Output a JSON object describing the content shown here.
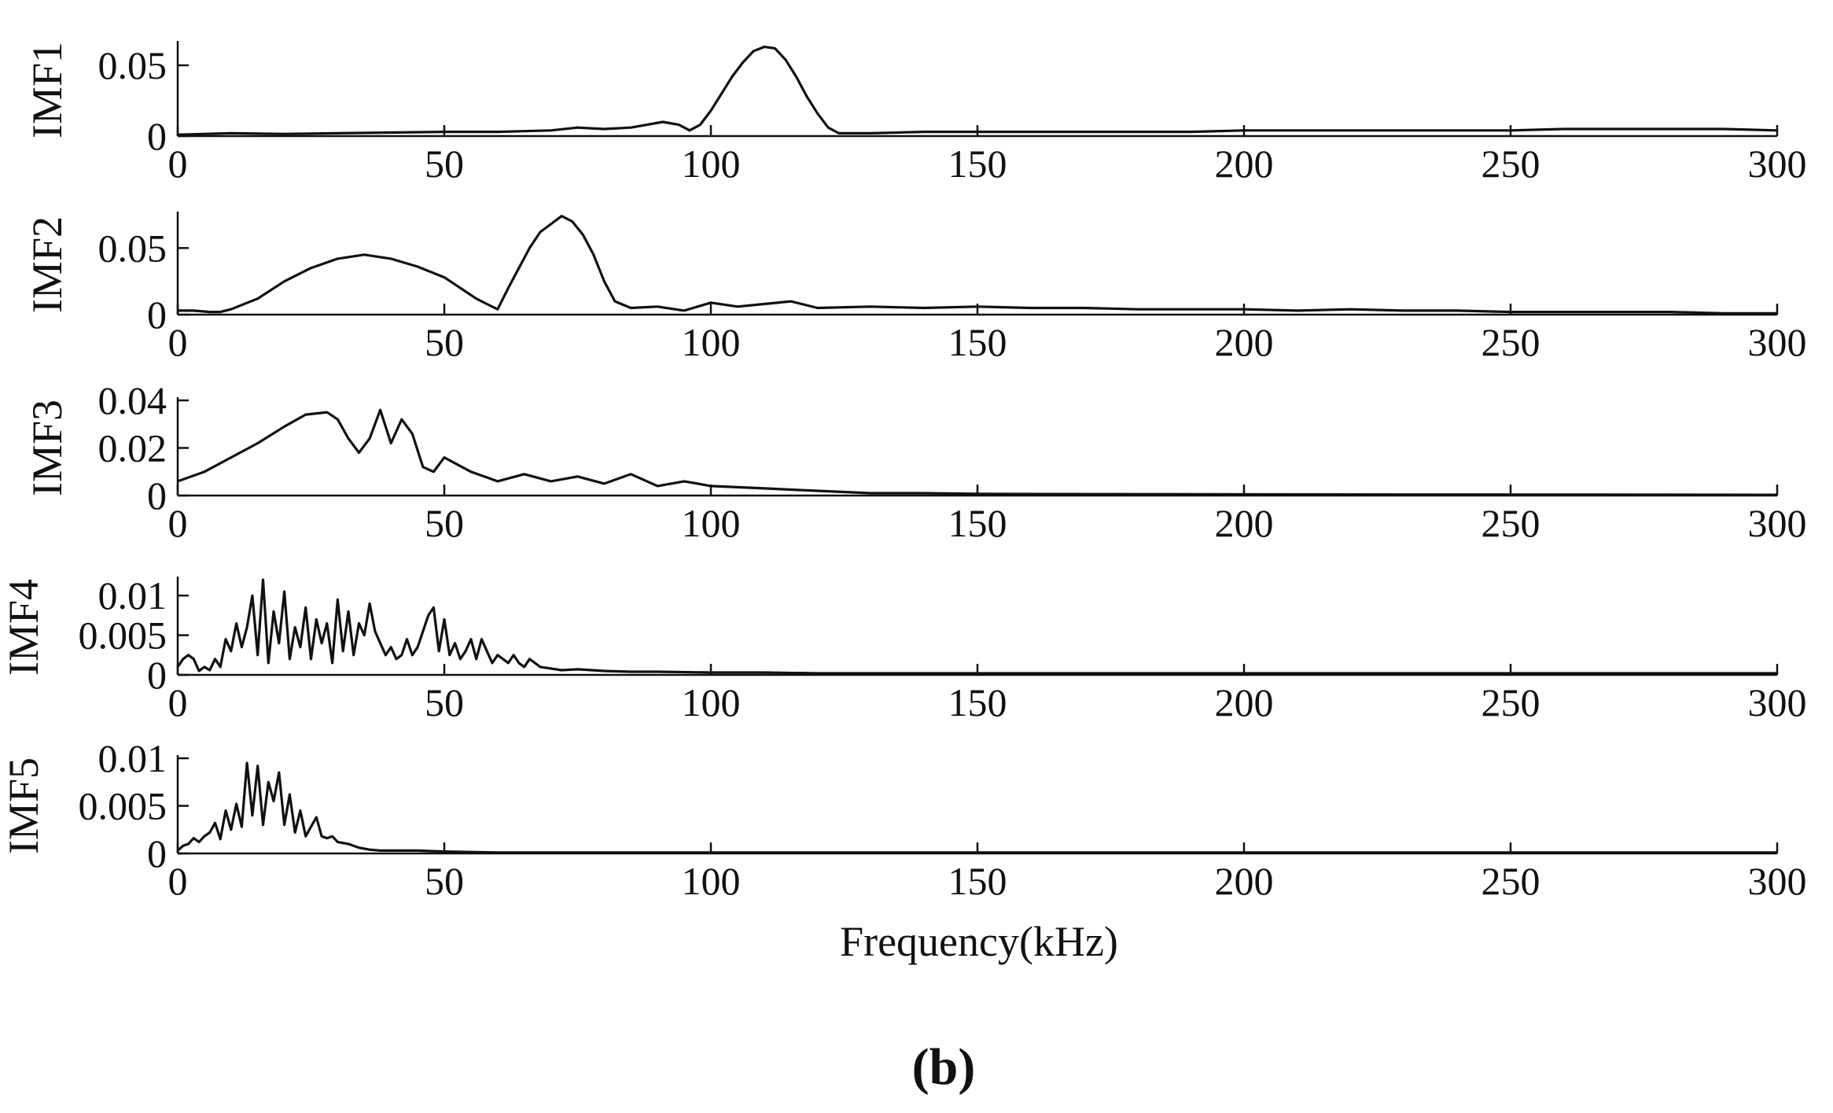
{
  "chart_data": [
    {
      "type": "line",
      "ylabel": "IMF1",
      "xlabel": "",
      "xlim": [
        0,
        300
      ],
      "ylim": [
        0,
        0.065
      ],
      "xticks": [
        "0",
        "50",
        "100",
        "150",
        "200",
        "250",
        "300"
      ],
      "yticks": [
        "0",
        "0.05"
      ],
      "line_color": "#111111",
      "series": [
        {
          "x": [
            0,
            10,
            20,
            30,
            40,
            50,
            60,
            70,
            75,
            80,
            85,
            88,
            91,
            94,
            96,
            98,
            100,
            102,
            104,
            106,
            108,
            110,
            112,
            114,
            116,
            118,
            120,
            122,
            124,
            130,
            140,
            150,
            160,
            170,
            180,
            190,
            200,
            210,
            220,
            230,
            240,
            250,
            260,
            270,
            280,
            290,
            300
          ],
          "values": [
            0.001,
            0.002,
            0.0015,
            0.002,
            0.0025,
            0.003,
            0.003,
            0.004,
            0.006,
            0.005,
            0.006,
            0.008,
            0.01,
            0.008,
            0.004,
            0.008,
            0.018,
            0.03,
            0.042,
            0.052,
            0.06,
            0.063,
            0.062,
            0.054,
            0.042,
            0.028,
            0.016,
            0.006,
            0.002,
            0.002,
            0.003,
            0.003,
            0.003,
            0.003,
            0.003,
            0.003,
            0.004,
            0.004,
            0.004,
            0.004,
            0.004,
            0.004,
            0.005,
            0.005,
            0.005,
            0.005,
            0.004
          ]
        }
      ]
    },
    {
      "type": "line",
      "ylabel": "IMF2",
      "xlabel": "",
      "xlim": [
        0,
        300
      ],
      "ylim": [
        0,
        0.075
      ],
      "xticks": [
        "0",
        "50",
        "100",
        "150",
        "200",
        "250",
        "300"
      ],
      "yticks": [
        "0",
        "0.05"
      ],
      "line_color": "#111111",
      "series": [
        {
          "x": [
            0,
            3,
            6,
            8,
            10,
            15,
            20,
            25,
            30,
            35,
            40,
            45,
            50,
            53,
            56,
            58,
            60,
            62,
            64,
            66,
            68,
            70,
            72,
            74,
            76,
            78,
            80,
            82,
            85,
            90,
            95,
            100,
            105,
            110,
            115,
            120,
            130,
            140,
            150,
            160,
            170,
            180,
            190,
            200,
            210,
            220,
            230,
            240,
            250,
            260,
            270,
            280,
            290,
            300
          ],
          "values": [
            0.003,
            0.003,
            0.002,
            0.002,
            0.004,
            0.012,
            0.025,
            0.035,
            0.042,
            0.045,
            0.042,
            0.036,
            0.028,
            0.02,
            0.012,
            0.008,
            0.004,
            0.02,
            0.035,
            0.05,
            0.062,
            0.068,
            0.074,
            0.07,
            0.06,
            0.045,
            0.025,
            0.01,
            0.005,
            0.006,
            0.003,
            0.009,
            0.006,
            0.008,
            0.01,
            0.005,
            0.006,
            0.005,
            0.006,
            0.005,
            0.005,
            0.004,
            0.004,
            0.004,
            0.003,
            0.004,
            0.003,
            0.003,
            0.002,
            0.002,
            0.002,
            0.002,
            0.001,
            0.001
          ]
        }
      ]
    },
    {
      "type": "line",
      "ylabel": "IMF3",
      "xlabel": "",
      "xlim": [
        0,
        300
      ],
      "ylim": [
        0,
        0.04
      ],
      "xticks": [
        "0",
        "50",
        "100",
        "150",
        "200",
        "250",
        "300"
      ],
      "yticks": [
        "0",
        "0.02",
        "0.04"
      ],
      "line_color": "#111111",
      "series": [
        {
          "x": [
            0,
            5,
            10,
            15,
            20,
            24,
            28,
            30,
            32,
            34,
            36,
            38,
            40,
            42,
            44,
            46,
            48,
            50,
            55,
            60,
            65,
            70,
            75,
            80,
            85,
            90,
            95,
            100,
            110,
            120,
            130,
            140,
            150,
            175,
            200,
            250,
            300
          ],
          "values": [
            0.006,
            0.01,
            0.016,
            0.022,
            0.029,
            0.034,
            0.035,
            0.032,
            0.024,
            0.018,
            0.024,
            0.036,
            0.022,
            0.032,
            0.026,
            0.012,
            0.01,
            0.016,
            0.01,
            0.006,
            0.009,
            0.006,
            0.008,
            0.005,
            0.009,
            0.004,
            0.006,
            0.004,
            0.003,
            0.002,
            0.001,
            0.001,
            0.0007,
            0.0006,
            0.0005,
            0.0004,
            0.0003
          ]
        }
      ]
    },
    {
      "type": "line",
      "ylabel": "IMF4",
      "xlabel": "",
      "xlim": [
        0,
        300
      ],
      "ylim": [
        0,
        0.012
      ],
      "xticks": [
        "0",
        "50",
        "100",
        "150",
        "200",
        "250",
        "300"
      ],
      "yticks": [
        "0",
        "0.005",
        "0.01"
      ],
      "line_color": "#111111",
      "series": [
        {
          "x": [
            0,
            1,
            2,
            3,
            4,
            5,
            6,
            7,
            8,
            9,
            10,
            11,
            12,
            13,
            14,
            15,
            16,
            17,
            18,
            19,
            20,
            21,
            22,
            23,
            24,
            25,
            26,
            27,
            28,
            29,
            30,
            31,
            32,
            33,
            34,
            35,
            36,
            37,
            38,
            39,
            40,
            41,
            42,
            43,
            44,
            45,
            46,
            47,
            48,
            49,
            50,
            51,
            52,
            53,
            54,
            55,
            56,
            57,
            58,
            59,
            60,
            61,
            62,
            63,
            64,
            65,
            66,
            67,
            68,
            70,
            72,
            75,
            80,
            85,
            90,
            100,
            110,
            120,
            150,
            200,
            250,
            300
          ],
          "values": [
            0.001,
            0.002,
            0.0025,
            0.002,
            0.0005,
            0.001,
            0.0006,
            0.002,
            0.001,
            0.0045,
            0.003,
            0.0065,
            0.0035,
            0.006,
            0.01,
            0.0025,
            0.012,
            0.0015,
            0.008,
            0.004,
            0.0105,
            0.002,
            0.006,
            0.0035,
            0.0085,
            0.002,
            0.007,
            0.004,
            0.0065,
            0.0015,
            0.0095,
            0.003,
            0.008,
            0.0025,
            0.0065,
            0.005,
            0.009,
            0.0055,
            0.004,
            0.0025,
            0.0035,
            0.002,
            0.0025,
            0.0045,
            0.0025,
            0.0035,
            0.0055,
            0.0075,
            0.0085,
            0.003,
            0.007,
            0.0025,
            0.004,
            0.002,
            0.003,
            0.0045,
            0.002,
            0.0045,
            0.003,
            0.0015,
            0.0025,
            0.002,
            0.0015,
            0.0025,
            0.0015,
            0.001,
            0.002,
            0.0015,
            0.001,
            0.0008,
            0.0006,
            0.0007,
            0.0005,
            0.0004,
            0.0004,
            0.0003,
            0.0003,
            0.0002,
            0.0002,
            0.0002,
            0.0002,
            0.0002
          ]
        }
      ]
    },
    {
      "type": "line",
      "ylabel": "IMF5",
      "xlabel": "Frequency(kHz)",
      "xlim": [
        0,
        300
      ],
      "ylim": [
        0,
        0.01
      ],
      "xticks": [
        "0",
        "50",
        "100",
        "150",
        "200",
        "250",
        "300"
      ],
      "yticks": [
        "0",
        "0.005",
        "0.01"
      ],
      "line_color": "#111111",
      "series": [
        {
          "x": [
            0,
            1,
            2,
            3,
            4,
            5,
            6,
            7,
            8,
            9,
            10,
            11,
            12,
            13,
            14,
            15,
            16,
            17,
            18,
            19,
            20,
            21,
            22,
            23,
            24,
            25,
            26,
            27,
            28,
            29,
            30,
            32,
            34,
            36,
            38,
            40,
            45,
            50,
            60,
            80,
            100,
            150,
            200,
            250,
            300
          ],
          "values": [
            0.0003,
            0.0008,
            0.001,
            0.0016,
            0.0012,
            0.0018,
            0.0022,
            0.0032,
            0.0015,
            0.0045,
            0.0025,
            0.0052,
            0.0028,
            0.0095,
            0.004,
            0.0092,
            0.003,
            0.0075,
            0.0055,
            0.0085,
            0.003,
            0.0062,
            0.0022,
            0.0045,
            0.0018,
            0.0028,
            0.0038,
            0.0018,
            0.0016,
            0.0018,
            0.0012,
            0.001,
            0.0006,
            0.0004,
            0.0003,
            0.0003,
            0.0003,
            0.0002,
            0.0001,
            0.0001,
            0.0001,
            0.0001,
            0.0001,
            0.0001,
            0.0001
          ]
        }
      ]
    }
  ],
  "figure": {
    "panel_label": "(b)"
  }
}
